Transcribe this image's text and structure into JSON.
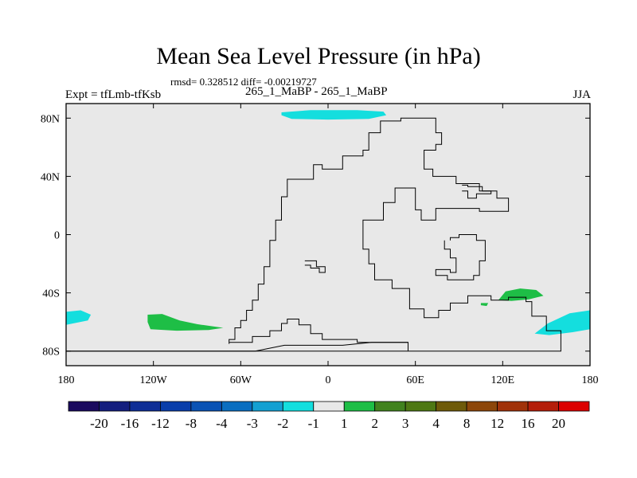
{
  "chart_data": {
    "type": "heatmap",
    "title": "Mean Sea Level Pressure (in hPa)",
    "stats_text": "rmsd= 0.328512 diff= -0.00219727",
    "left_label": "Expt = tfLmb-tfKsb",
    "center_label": "265_1_MaBP - 265_1_MaBP",
    "right_label": "JJA",
    "xlim": [
      -180,
      180
    ],
    "ylim": [
      -90,
      90
    ],
    "x_ticks": [
      {
        "value": -180,
        "label": "180"
      },
      {
        "value": -120,
        "label": "120W"
      },
      {
        "value": -60,
        "label": "60W"
      },
      {
        "value": 0,
        "label": "0"
      },
      {
        "value": 60,
        "label": "60E"
      },
      {
        "value": 120,
        "label": "120E"
      },
      {
        "value": 180,
        "label": "180"
      }
    ],
    "y_ticks": [
      {
        "value": 80,
        "label": "80N"
      },
      {
        "value": 40,
        "label": "40N"
      },
      {
        "value": 0,
        "label": "0"
      },
      {
        "value": -40,
        "label": "40S"
      },
      {
        "value": -80,
        "label": "80S"
      }
    ],
    "background_color": "#e8e8e8",
    "colorbar": {
      "levels": [
        "-20",
        "-16",
        "-12",
        "-8",
        "-4",
        "-3",
        "-2",
        "-1",
        "1",
        "2",
        "3",
        "4",
        "8",
        "12",
        "16",
        "20"
      ],
      "colors": [
        "#1a0a5e",
        "#141e7e",
        "#0f2e96",
        "#0a3eaa",
        "#0a52b4",
        "#0a6ec0",
        "#14a0d2",
        "#14dede",
        "#e8e8e8",
        "#1ebe46",
        "#41821e",
        "#4e7814",
        "#6e5a0a",
        "#8c460a",
        "#a0320a",
        "#b41e0a",
        "#dc0000"
      ]
    },
    "anomaly_regions": [
      {
        "name": "arctic-positive-neg-anomaly",
        "color": "#14dede",
        "points": [
          [
            -32,
            84
          ],
          [
            -12,
            85.5
          ],
          [
            20,
            85.5
          ],
          [
            38,
            84.5
          ],
          [
            40,
            82
          ],
          [
            28,
            79.5
          ],
          [
            0,
            79
          ],
          [
            -25,
            79.5
          ],
          [
            -32,
            82
          ]
        ]
      },
      {
        "name": "south-pacific-cyan-anomaly",
        "color": "#14dede",
        "points": [
          [
            -180,
            -53
          ],
          [
            -170,
            -52
          ],
          [
            -163,
            -55
          ],
          [
            -165,
            -59
          ],
          [
            -180,
            -62
          ]
        ]
      },
      {
        "name": "south-pacific-green-anomaly",
        "color": "#1ebe46",
        "points": [
          [
            -124,
            -55
          ],
          [
            -114,
            -54.5
          ],
          [
            -102,
            -59
          ],
          [
            -90,
            -61.5
          ],
          [
            -72,
            -64
          ],
          [
            -82,
            -65.5
          ],
          [
            -104,
            -66
          ],
          [
            -122,
            -65
          ],
          [
            -124,
            -60
          ]
        ]
      },
      {
        "name": "south-indian-green-anomaly",
        "color": "#1ebe46",
        "points": [
          [
            117,
            -45
          ],
          [
            122,
            -39
          ],
          [
            132,
            -37
          ],
          [
            143,
            -38
          ],
          [
            148,
            -42
          ],
          [
            138,
            -44.5
          ],
          [
            126,
            -45.5
          ]
        ]
      },
      {
        "name": "south-indian-green-speck",
        "color": "#1ebe46",
        "points": [
          [
            105,
            -47
          ],
          [
            110,
            -47
          ],
          [
            109,
            -49
          ],
          [
            105,
            -48.5
          ]
        ]
      },
      {
        "name": "southeast-pacific-cyan-anomaly",
        "color": "#14dede",
        "points": [
          [
            142,
            -68
          ],
          [
            151,
            -61
          ],
          [
            166,
            -54
          ],
          [
            180,
            -52
          ],
          [
            180,
            -65
          ],
          [
            168,
            -67
          ],
          [
            152,
            -69
          ]
        ]
      }
    ],
    "coastlines": [
      {
        "name": "supercontinent-outline",
        "points": [
          [
            -68,
            -75
          ],
          [
            -68,
            -72
          ],
          [
            -64,
            -72
          ],
          [
            -64,
            -64
          ],
          [
            -60,
            -64
          ],
          [
            -60,
            -59
          ],
          [
            -56,
            -59
          ],
          [
            -56,
            -52
          ],
          [
            -52,
            -52
          ],
          [
            -52,
            -45
          ],
          [
            -48,
            -45
          ],
          [
            -48,
            -34
          ],
          [
            -44,
            -34
          ],
          [
            -44,
            -22
          ],
          [
            -40,
            -22
          ],
          [
            -40,
            -4
          ],
          [
            -36,
            -4
          ],
          [
            -36,
            10
          ],
          [
            -32,
            10
          ],
          [
            -32,
            26
          ],
          [
            -28,
            26
          ],
          [
            -28,
            38
          ],
          [
            -10,
            38
          ],
          [
            -10,
            48
          ],
          [
            -4,
            48
          ],
          [
            -4,
            45
          ],
          [
            10,
            45
          ],
          [
            10,
            54
          ],
          [
            24,
            54
          ],
          [
            24,
            58
          ],
          [
            28,
            58
          ],
          [
            28,
            70
          ],
          [
            36,
            70
          ],
          [
            36,
            78
          ],
          [
            50,
            78
          ],
          [
            50,
            80
          ],
          [
            74,
            80
          ],
          [
            74,
            70
          ],
          [
            78,
            70
          ],
          [
            78,
            62
          ],
          [
            74,
            62
          ],
          [
            74,
            58
          ],
          [
            66,
            58
          ],
          [
            66,
            45
          ],
          [
            72,
            45
          ],
          [
            72,
            40
          ],
          [
            88,
            40
          ],
          [
            88,
            35
          ],
          [
            104,
            35
          ],
          [
            104,
            30
          ],
          [
            116,
            30
          ],
          [
            116,
            25
          ],
          [
            124,
            25
          ],
          [
            124,
            16
          ],
          [
            104,
            16
          ],
          [
            104,
            18
          ],
          [
            74,
            18
          ],
          [
            74,
            10
          ],
          [
            64,
            10
          ],
          [
            64,
            17
          ],
          [
            60,
            17
          ],
          [
            60,
            32
          ],
          [
            46,
            32
          ],
          [
            46,
            22
          ],
          [
            38,
            22
          ],
          [
            38,
            10
          ],
          [
            24,
            10
          ],
          [
            24,
            -10
          ],
          [
            28,
            -10
          ],
          [
            28,
            -20
          ],
          [
            32,
            -20
          ],
          [
            32,
            -31
          ],
          [
            44,
            -31
          ],
          [
            44,
            -37
          ],
          [
            56,
            -37
          ],
          [
            56,
            -51
          ],
          [
            66,
            -51
          ],
          [
            66,
            -57
          ],
          [
            76,
            -57
          ],
          [
            76,
            -52
          ],
          [
            84,
            -52
          ],
          [
            84,
            -47
          ],
          [
            96,
            -47
          ],
          [
            96,
            -42
          ],
          [
            112,
            -42
          ],
          [
            112,
            -45
          ],
          [
            124,
            -45
          ],
          [
            124,
            -43
          ],
          [
            136,
            -43
          ],
          [
            136,
            -46
          ],
          [
            140,
            -46
          ],
          [
            140,
            -56
          ],
          [
            150,
            -56
          ],
          [
            150,
            -66
          ],
          [
            160,
            -66
          ],
          [
            160,
            -80
          ],
          [
            -180,
            -80
          ]
        ]
      },
      {
        "name": "inland-lake-outline",
        "points": [
          [
            -16,
            -18
          ],
          [
            -8,
            -18
          ],
          [
            -8,
            -22
          ],
          [
            -2,
            -22
          ],
          [
            -2,
            -26
          ],
          [
            -6,
            -26
          ],
          [
            -6,
            -23
          ],
          [
            -12,
            -23
          ],
          [
            -12,
            -21
          ],
          [
            -16,
            -21
          ]
        ]
      },
      {
        "name": "eastern-basin-outline",
        "points": [
          [
            80,
            -4
          ],
          [
            80,
            -10
          ],
          [
            84,
            -10
          ],
          [
            84,
            -16
          ],
          [
            88,
            -16
          ],
          [
            88,
            -26
          ],
          [
            84,
            -26
          ],
          [
            84,
            -24
          ],
          [
            74,
            -24
          ],
          [
            74,
            -28
          ],
          [
            82,
            -28
          ],
          [
            82,
            -31
          ],
          [
            100,
            -31
          ],
          [
            100,
            -28
          ],
          [
            104,
            -28
          ],
          [
            104,
            -18
          ],
          [
            108,
            -18
          ],
          [
            108,
            -4
          ],
          [
            102,
            -4
          ],
          [
            102,
            0
          ],
          [
            90,
            0
          ],
          [
            90,
            -2
          ],
          [
            84,
            -2
          ],
          [
            84,
            -4
          ]
        ]
      },
      {
        "name": "northeast-inlet-outline",
        "points": [
          [
            92,
            34
          ],
          [
            96,
            34
          ],
          [
            96,
            33
          ],
          [
            106,
            33
          ],
          [
            106,
            30
          ],
          [
            112,
            30
          ],
          [
            112,
            28
          ],
          [
            102,
            28
          ],
          [
            102,
            25
          ],
          [
            96,
            25
          ],
          [
            96,
            30
          ],
          [
            92,
            30
          ]
        ]
      },
      {
        "name": "far-south-coast-line",
        "points": [
          [
            -180,
            -80
          ],
          [
            -100,
            -80
          ],
          [
            -50,
            -80
          ],
          [
            -30,
            -76
          ],
          [
            -10,
            -76
          ],
          [
            10,
            -76
          ],
          [
            30,
            -74
          ],
          [
            55,
            -74
          ],
          [
            55,
            -80
          ]
        ]
      },
      {
        "name": "south-pole-ridge",
        "points": [
          [
            -68,
            -74
          ],
          [
            -52,
            -74
          ],
          [
            -52,
            -70
          ],
          [
            -40,
            -70
          ],
          [
            -40,
            -66
          ],
          [
            -32,
            -66
          ],
          [
            -32,
            -61
          ],
          [
            -28,
            -61
          ],
          [
            -28,
            -58
          ],
          [
            -20,
            -58
          ],
          [
            -20,
            -62
          ],
          [
            -12,
            -62
          ],
          [
            -12,
            -68
          ],
          [
            -4,
            -68
          ],
          [
            -4,
            -72
          ],
          [
            20,
            -72
          ],
          [
            20,
            -74
          ],
          [
            55,
            -74
          ]
        ]
      }
    ]
  }
}
